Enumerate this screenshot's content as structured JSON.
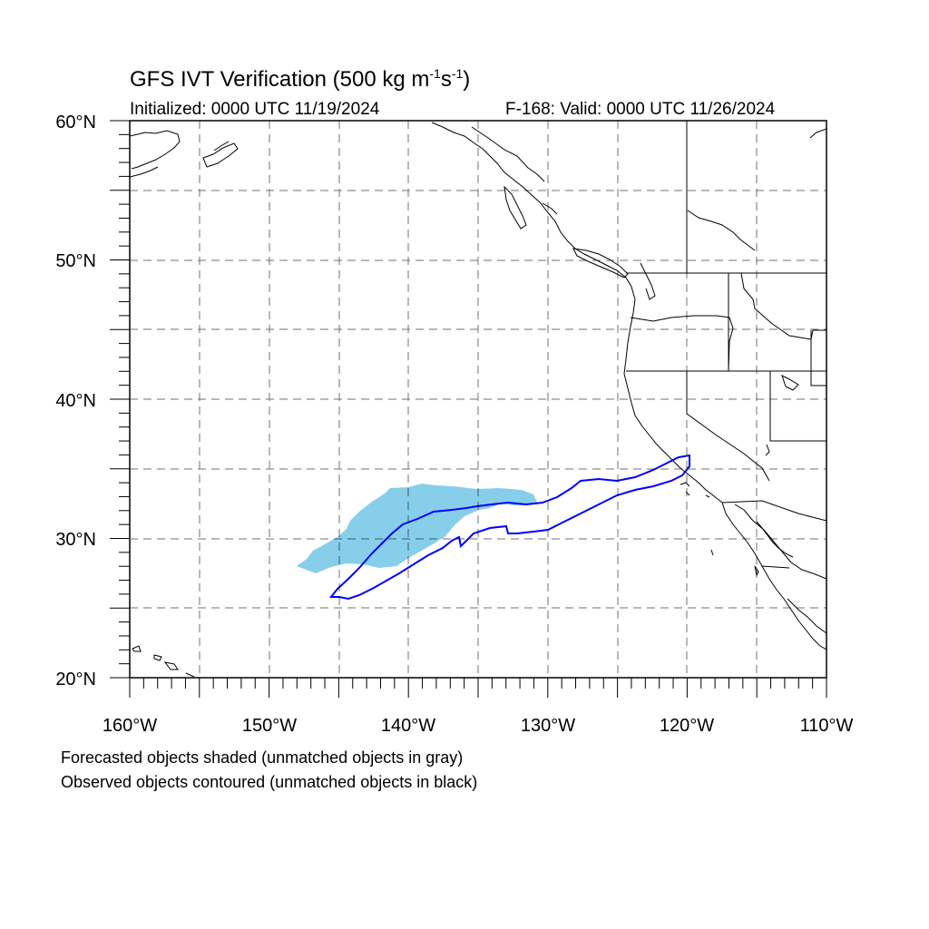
{
  "title": {
    "main": "GFS IVT Verification (500 kg m",
    "exp1": "-1",
    "mid": "s",
    "exp2": "-1",
    "end": ")"
  },
  "initialized": "Initialized: 0000 UTC 11/19/2024",
  "valid": "F-168: Valid: 0000 UTC 11/26/2024",
  "map": {
    "lat_labels": [
      "20°N",
      "30°N",
      "40°N",
      "50°N",
      "60°N"
    ],
    "lon_labels": [
      "160°W",
      "150°W",
      "140°W",
      "130°W",
      "120°W",
      "110°W"
    ],
    "lat_range": [
      20,
      60
    ],
    "lon_range": [
      -160,
      -110
    ],
    "grid": "dashed every 5°",
    "forecast_color": "#87ceeb",
    "observed_color": "#0000ff"
  },
  "notes": [
    "Forecasted objects shaded (unmatched objects in gray)",
    "Observed objects contoured (unmatched objects in black)"
  ]
}
